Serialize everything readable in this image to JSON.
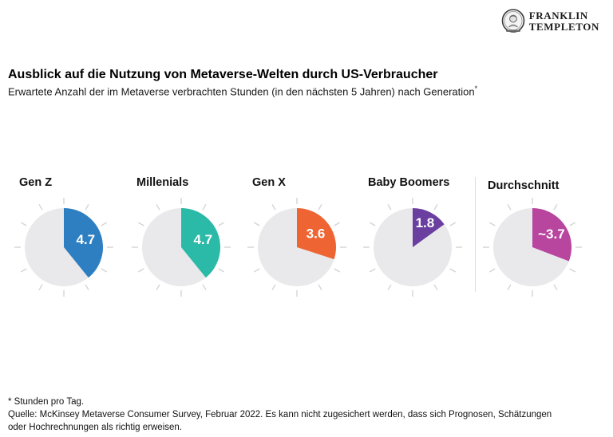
{
  "logo": {
    "line1": "FRANKLIN",
    "line2": "TEMPLETON"
  },
  "header": {
    "title": "Ausblick auf die Nutzung von Metaverse-Welten durch US-Verbraucher",
    "subtitle": "Erwartete Anzahl der im Metaverse verbrachten Stunden (in den nächsten 5 Jahren) nach Generation",
    "footnote_marker": "*"
  },
  "chart_data": {
    "type": "pie",
    "subtype": "clock-wedge",
    "clock_hours_total": 12,
    "unit": "Stunden pro Tag",
    "title": "Ausblick auf die Nutzung von Metaverse-Welten durch US-Verbraucher",
    "subtitle": "Erwartete Anzahl der im Metaverse verbrachten Stunden (in den nächsten 5 Jahren) nach Generation*",
    "face_color": "#e9e9eb",
    "tick_color": "#d4d4d6",
    "series": [
      {
        "label": "Gen Z",
        "value": 4.7,
        "display": "4.7",
        "color": "#2e7fc2",
        "separated": false
      },
      {
        "label": "Millenials",
        "value": 4.7,
        "display": "4.7",
        "color": "#2cbaa8",
        "separated": false
      },
      {
        "label": "Gen X",
        "value": 3.6,
        "display": "3.6",
        "color": "#ee6433",
        "separated": false
      },
      {
        "label": "Baby Boomers",
        "value": 1.8,
        "display": "1.8",
        "color": "#6a3fa0",
        "separated": false
      },
      {
        "label": "Durchschnitt",
        "value": 3.7,
        "display": "~3.7",
        "color": "#b8459e",
        "separated": true
      }
    ]
  },
  "footer": {
    "footnote": "* Stunden pro Tag.",
    "source": "Quelle: McKinsey Metaverse Consumer Survey, Februar 2022. Es kann nicht zugesichert werden, dass sich Prognosen, Schätzungen oder Hochrechnungen als richtig erweisen."
  }
}
